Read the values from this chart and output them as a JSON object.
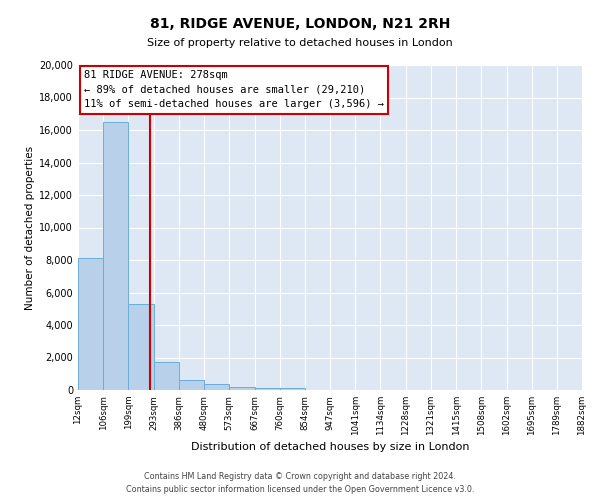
{
  "title1": "81, RIDGE AVENUE, LONDON, N21 2RH",
  "title2": "Size of property relative to detached houses in London",
  "xlabel": "Distribution of detached houses by size in London",
  "ylabel": "Number of detached properties",
  "property_size": 278,
  "property_label": "81 RIDGE AVENUE: 278sqm",
  "annotation_line1": "← 89% of detached houses are smaller (29,210)",
  "annotation_line2": "11% of semi-detached houses are larger (3,596) →",
  "footer1": "Contains HM Land Registry data © Crown copyright and database right 2024.",
  "footer2": "Contains public sector information licensed under the Open Government Licence v3.0.",
  "bin_edges": [
    12,
    106,
    199,
    293,
    386,
    480,
    573,
    667,
    760,
    854,
    947,
    1041,
    1134,
    1228,
    1321,
    1415,
    1508,
    1602,
    1695,
    1789,
    1882
  ],
  "bar_heights": [
    8100,
    16500,
    5300,
    1750,
    620,
    340,
    200,
    150,
    120,
    0,
    0,
    0,
    0,
    0,
    0,
    0,
    0,
    0,
    0,
    0
  ],
  "bar_color": "#b8d0ea",
  "bar_edge_color": "#6aaed6",
  "vline_color": "#cc0000",
  "ann_border_color": "#cc0000",
  "plot_bg_color": "#dde8f4",
  "grid_color": "#ffffff",
  "ylim_max": 20000,
  "tick_labels": [
    "12sqm",
    "106sqm",
    "199sqm",
    "293sqm",
    "386sqm",
    "480sqm",
    "573sqm",
    "667sqm",
    "760sqm",
    "854sqm",
    "947sqm",
    "1041sqm",
    "1134sqm",
    "1228sqm",
    "1321sqm",
    "1415sqm",
    "1508sqm",
    "1602sqm",
    "1695sqm",
    "1789sqm",
    "1882sqm"
  ]
}
